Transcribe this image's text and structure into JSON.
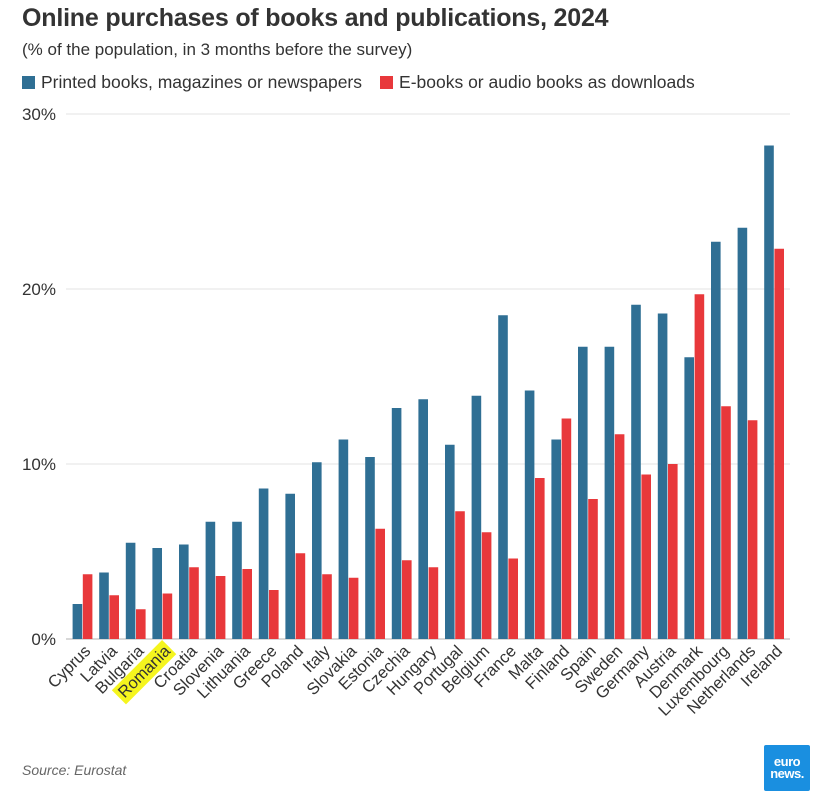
{
  "chart_data": {
    "type": "bar",
    "title": "Online purchases of books and publications, 2024",
    "subtitle": "(% of the population, in 3 months before the survey)",
    "categories": [
      "Cyprus",
      "Latvia",
      "Bulgaria",
      "Romania",
      "Croatia",
      "Slovenia",
      "Lithuania",
      "Greece",
      "Poland",
      "Italy",
      "Slovakia",
      "Estonia",
      "Czechia",
      "Hungary",
      "Portugal",
      "Belgium",
      "France",
      "Malta",
      "Finland",
      "Spain",
      "Sweden",
      "Germany",
      "Austria",
      "Denmark",
      "Luxembourg",
      "Netherlands",
      "Ireland"
    ],
    "highlight": "Romania",
    "series": [
      {
        "name": "Printed books, magazines or newspapers",
        "color": "#2f6f94",
        "values": [
          2.0,
          3.8,
          5.5,
          5.2,
          5.4,
          6.7,
          6.7,
          8.6,
          8.3,
          10.1,
          11.4,
          10.4,
          13.2,
          13.7,
          11.1,
          13.9,
          18.5,
          14.2,
          11.4,
          16.7,
          16.7,
          19.1,
          18.6,
          16.1,
          22.7,
          23.5,
          28.2
        ]
      },
      {
        "name": "E-books or audio books as downloads",
        "color": "#e8383b",
        "values": [
          3.7,
          2.5,
          1.7,
          2.6,
          4.1,
          3.6,
          4.0,
          2.8,
          4.9,
          3.7,
          3.5,
          6.3,
          4.5,
          4.1,
          7.3,
          6.1,
          4.6,
          9.2,
          12.6,
          8.0,
          11.7,
          9.4,
          10.0,
          19.7,
          13.3,
          12.5,
          22.3
        ]
      }
    ],
    "ylim": [
      0,
      30
    ],
    "yticks": [
      0,
      10,
      20,
      30
    ],
    "ytick_labels": [
      "0%",
      "10%",
      "20%",
      "30%"
    ],
    "xlabel": "",
    "ylabel": "",
    "grid": true,
    "legend_position": "top-left"
  },
  "source": "Source: Eurostat",
  "logo": {
    "line1": "euro",
    "line2": "news."
  }
}
